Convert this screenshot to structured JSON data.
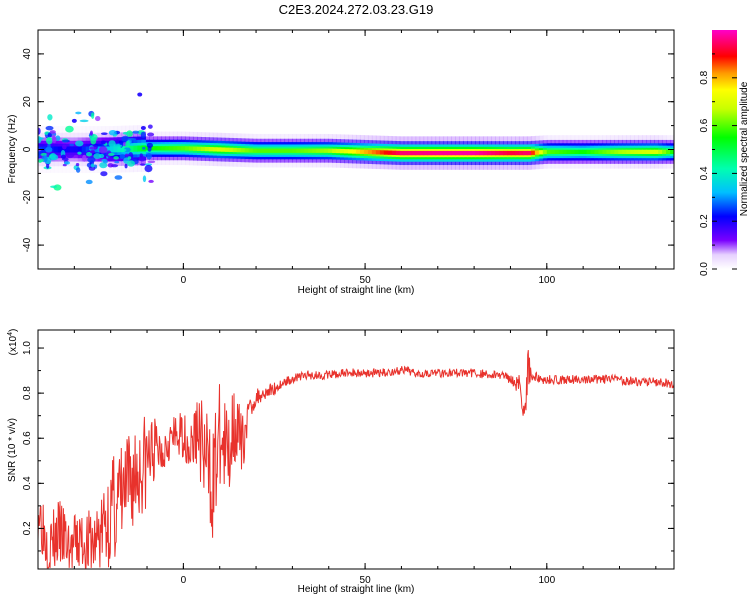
{
  "title": "C2E3.2024.272.03.23.G19",
  "colorbar": {
    "label": "Normalized spectral amplitude",
    "ticks": [
      "0.0",
      "0.2",
      "0.4",
      "0.6",
      "0.8"
    ],
    "tick_values": [
      0.0,
      0.2,
      0.4,
      0.6,
      0.8
    ],
    "range": [
      0,
      1
    ]
  },
  "chart_data": [
    {
      "type": "heatmap",
      "xlabel": "Height of straight line (km)",
      "ylabel": "Frequency (Hz)",
      "xlim": [
        -40,
        135
      ],
      "ylim": [
        -50,
        50
      ],
      "xticks": [
        0,
        50,
        100
      ],
      "xtick_labels": [
        "0",
        "50",
        "100"
      ],
      "yticks": [
        -40,
        -20,
        0,
        20,
        40
      ],
      "ytick_labels": [
        "-40",
        "-20",
        "0",
        "20",
        "40"
      ],
      "grid": false,
      "ridge": {
        "x": [
          -40,
          -30,
          -20,
          -10,
          0,
          10,
          20,
          30,
          40,
          50,
          60,
          70,
          80,
          90,
          95,
          100,
          110,
          120,
          130,
          135
        ],
        "frequency": [
          0,
          0,
          0,
          0.5,
          0.5,
          0,
          -0.5,
          -0.5,
          -0.5,
          -1,
          -1.5,
          -1.5,
          -1.5,
          -1.5,
          -1.5,
          -1,
          -1,
          -1,
          -1,
          -1
        ],
        "peak_amplitude": [
          0.25,
          0.2,
          0.35,
          0.55,
          0.6,
          0.7,
          0.6,
          0.6,
          0.65,
          0.8,
          0.95,
          0.97,
          0.98,
          0.92,
          0.95,
          0.6,
          0.55,
          0.65,
          0.7,
          0.55
        ]
      }
    },
    {
      "type": "line",
      "xlabel": "Height of straight line (km)",
      "ylabel": "SNR (10 * v/v)",
      "y_multiplier": "(x10",
      "y_multiplier_exp": "4",
      "y_multiplier_close": ")",
      "xlim": [
        -40,
        135
      ],
      "ylim": [
        0.02,
        1.08
      ],
      "xticks": [
        0,
        50,
        100
      ],
      "xtick_labels": [
        "0",
        "50",
        "100"
      ],
      "yticks": [
        0.2,
        0.4,
        0.6,
        0.8,
        1.0
      ],
      "ytick_labels": [
        "0.2",
        "0.4",
        "0.6",
        "0.8",
        "1.0"
      ],
      "grid": false,
      "series": [
        {
          "color": "#e8322c",
          "x": [
            -40,
            -37,
            -34,
            -31,
            -28,
            -25,
            -22,
            -19,
            -16,
            -13,
            -10,
            -8,
            -6,
            -4,
            -2,
            0,
            2,
            4,
            6,
            8,
            10,
            12,
            14,
            16,
            18,
            20,
            22,
            25,
            28,
            31,
            34,
            37,
            40,
            45,
            50,
            55,
            60,
            65,
            70,
            75,
            80,
            85,
            88,
            90,
            92,
            94,
            95,
            96,
            98,
            100,
            105,
            110,
            115,
            120,
            125,
            130,
            135
          ],
          "y": [
            0.3,
            0.12,
            0.18,
            0.1,
            0.15,
            0.12,
            0.2,
            0.3,
            0.35,
            0.45,
            0.5,
            0.55,
            0.55,
            0.6,
            0.6,
            0.62,
            0.55,
            0.65,
            0.5,
            0.4,
            0.6,
            0.5,
            0.7,
            0.55,
            0.72,
            0.78,
            0.8,
            0.82,
            0.85,
            0.87,
            0.88,
            0.88,
            0.88,
            0.89,
            0.89,
            0.89,
            0.9,
            0.89,
            0.89,
            0.89,
            0.89,
            0.88,
            0.88,
            0.87,
            0.85,
            0.75,
            0.93,
            0.88,
            0.86,
            0.86,
            0.86,
            0.86,
            0.86,
            0.86,
            0.85,
            0.85,
            0.84
          ],
          "spread": [
            0.15,
            0.15,
            0.15,
            0.15,
            0.15,
            0.15,
            0.2,
            0.25,
            0.25,
            0.25,
            0.22,
            0.15,
            0.12,
            0.1,
            0.1,
            0.1,
            0.12,
            0.18,
            0.25,
            0.25,
            0.25,
            0.25,
            0.2,
            0.15,
            0.05,
            0.04,
            0.03,
            0.03,
            0.02,
            0.02,
            0.02,
            0.02,
            0.02,
            0.02,
            0.02,
            0.02,
            0.02,
            0.02,
            0.02,
            0.02,
            0.02,
            0.02,
            0.02,
            0.03,
            0.05,
            0.1,
            0.1,
            0.04,
            0.02,
            0.02,
            0.02,
            0.02,
            0.02,
            0.02,
            0.02,
            0.02,
            0.02
          ]
        }
      ]
    }
  ]
}
